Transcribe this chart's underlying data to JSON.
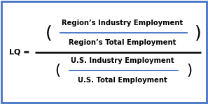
{
  "bg_color": "#ffffff",
  "border_color": "#4472c4",
  "text_color": "#000000",
  "line_color": "#4472c4",
  "main_line_color": "#000000",
  "lq_label": "LQ =",
  "numerator_top": "Region’s Industry Employment",
  "numerator_bottom": "Region’s Total Employment",
  "denominator_top": "U.S. Industry Employment",
  "denominator_bottom": "U.S. Total Employment",
  "font_size_text": 7.2,
  "font_size_lq": 8.0,
  "font_size_paren": 18,
  "font_size_paren_small": 15
}
